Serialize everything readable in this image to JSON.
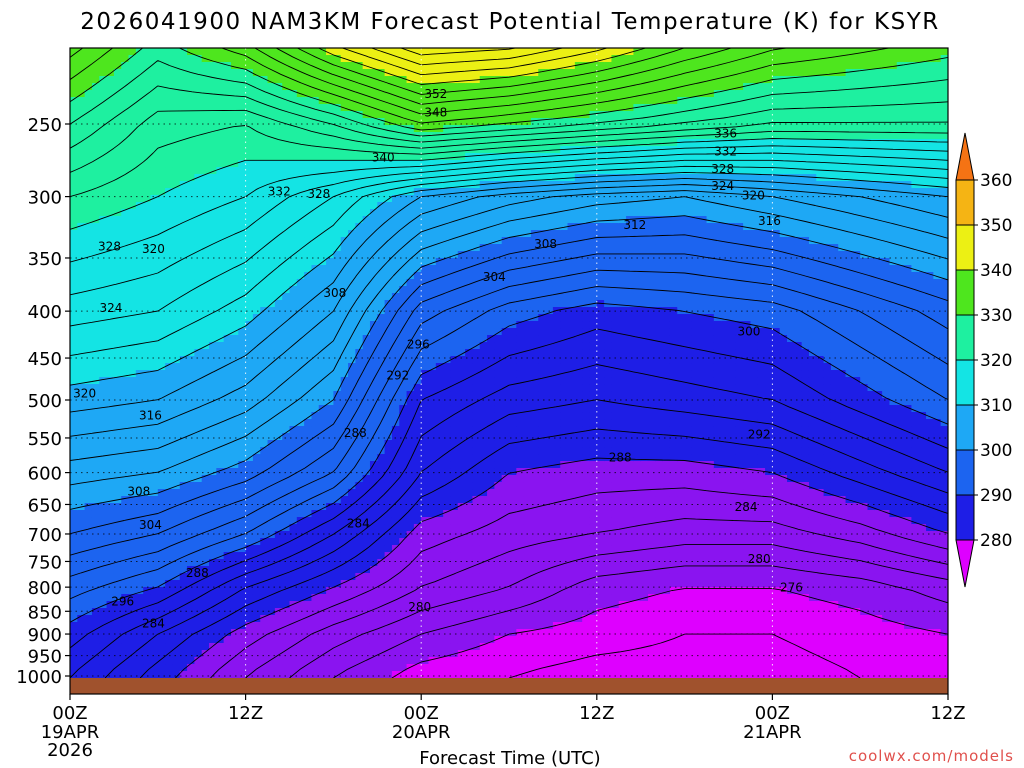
{
  "chart_data": {
    "type": "contour",
    "title": "2026041900 NAM3KM Forecast Potential Temperature (K) for KSYR",
    "xlabel": "Forecast Time (UTC)",
    "ylabel": "",
    "credit": "coolwx.com/models",
    "x_ticks": [
      {
        "hour": 0,
        "label": "00Z",
        "date": "19APR",
        "year": "2026"
      },
      {
        "hour": 12,
        "label": "12Z"
      },
      {
        "hour": 24,
        "label": "00Z",
        "date": "20APR"
      },
      {
        "hour": 36,
        "label": "12Z"
      },
      {
        "hour": 48,
        "label": "00Z",
        "date": "21APR"
      },
      {
        "hour": 60,
        "label": "12Z"
      }
    ],
    "xlim_hours": [
      0,
      60
    ],
    "y_ticks": [
      "250",
      "300",
      "350",
      "400",
      "450",
      "500",
      "550",
      "600",
      "650",
      "700",
      "750",
      "800",
      "850",
      "900",
      "950",
      "1000"
    ],
    "y_tick_values": [
      250,
      300,
      350,
      400,
      450,
      500,
      550,
      600,
      650,
      700,
      750,
      800,
      850,
      900,
      950,
      1000
    ],
    "ylim_hpa": [
      200,
      1000
    ],
    "colorbar": {
      "labels": [
        "360",
        "350",
        "340",
        "330",
        "320",
        "310",
        "300",
        "290",
        "280"
      ],
      "levels": [
        280,
        290,
        300,
        310,
        320,
        330,
        340,
        350,
        360
      ],
      "colors": [
        "#de00ff",
        "#8a14f0",
        "#1e1ee6",
        "#1c64f0",
        "#1ea8f5",
        "#14e4e4",
        "#1ef0a0",
        "#4ee61e",
        "#ecf014",
        "#f5b414",
        "#f57314"
      ]
    },
    "ground_color": "#a0522d",
    "contour_labels": [
      {
        "text": "352",
        "hour": 25.0,
        "hpa": 232
      },
      {
        "text": "348",
        "hour": 25.0,
        "hpa": 243
      },
      {
        "text": "340",
        "hour": 21.4,
        "hpa": 272
      },
      {
        "text": "336",
        "hour": 44.8,
        "hpa": 256
      },
      {
        "text": "332",
        "hour": 44.8,
        "hpa": 268
      },
      {
        "text": "328",
        "hour": 44.6,
        "hpa": 280
      },
      {
        "text": "324",
        "hour": 44.6,
        "hpa": 292
      },
      {
        "text": "332",
        "hour": 14.3,
        "hpa": 296
      },
      {
        "text": "328",
        "hour": 17.0,
        "hpa": 298
      },
      {
        "text": "320",
        "hour": 46.7,
        "hpa": 299
      },
      {
        "text": "316",
        "hour": 47.8,
        "hpa": 319
      },
      {
        "text": "312",
        "hour": 38.6,
        "hpa": 322
      },
      {
        "text": "308",
        "hour": 32.5,
        "hpa": 338
      },
      {
        "text": "328",
        "hour": 2.7,
        "hpa": 340
      },
      {
        "text": "320",
        "hour": 5.7,
        "hpa": 342
      },
      {
        "text": "304",
        "hour": 29.0,
        "hpa": 367
      },
      {
        "text": "308",
        "hour": 18.1,
        "hpa": 382
      },
      {
        "text": "324",
        "hour": 2.8,
        "hpa": 397
      },
      {
        "text": "300",
        "hour": 46.4,
        "hpa": 421
      },
      {
        "text": "296",
        "hour": 23.8,
        "hpa": 435
      },
      {
        "text": "292",
        "hour": 22.4,
        "hpa": 470
      },
      {
        "text": "320",
        "hour": 1.0,
        "hpa": 492
      },
      {
        "text": "316",
        "hour": 5.5,
        "hpa": 520
      },
      {
        "text": "288",
        "hour": 19.5,
        "hpa": 543
      },
      {
        "text": "292",
        "hour": 47.1,
        "hpa": 545
      },
      {
        "text": "288",
        "hour": 37.6,
        "hpa": 578
      },
      {
        "text": "308",
        "hour": 4.7,
        "hpa": 629
      },
      {
        "text": "284",
        "hour": 46.2,
        "hpa": 654
      },
      {
        "text": "284",
        "hour": 19.7,
        "hpa": 682
      },
      {
        "text": "304",
        "hour": 5.5,
        "hpa": 684
      },
      {
        "text": "280",
        "hour": 47.1,
        "hpa": 745
      },
      {
        "text": "288",
        "hour": 8.7,
        "hpa": 772
      },
      {
        "text": "276",
        "hour": 49.3,
        "hpa": 801
      },
      {
        "text": "296",
        "hour": 3.6,
        "hpa": 829
      },
      {
        "text": "280",
        "hour": 23.9,
        "hpa": 841
      },
      {
        "text": "284",
        "hour": 5.7,
        "hpa": 877
      }
    ]
  }
}
